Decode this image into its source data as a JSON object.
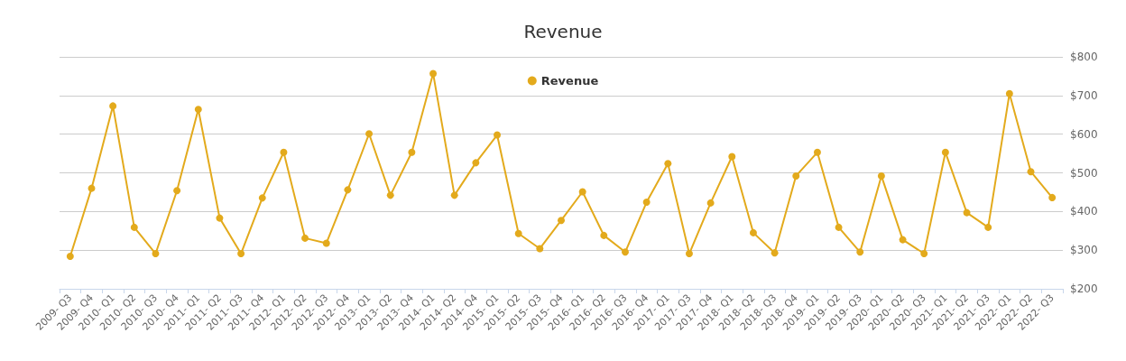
{
  "chart_data": {
    "type": "line",
    "title": "Revenue",
    "categories": [
      "2009- Q3",
      "2009- Q4",
      "2010- Q1",
      "2010- Q2",
      "2010- Q3",
      "2010- Q4",
      "2011- Q1",
      "2011- Q2",
      "2011- Q3",
      "2011- Q4",
      "2012- Q1",
      "2012- Q2",
      "2012- Q3",
      "2012- Q4",
      "2013- Q1",
      "2013- Q2",
      "2013- Q4",
      "2014- Q1",
      "2014- Q2",
      "2014- Q4",
      "2015- Q1",
      "2015- Q2",
      "2015- Q3",
      "2015- Q4",
      "2016- Q1",
      "2016- Q2",
      "2016- Q3",
      "2016- Q4",
      "2017- Q1",
      "2017- Q3",
      "2017- Q4",
      "2018- Q1",
      "2018- Q2",
      "2018- Q3",
      "2018- Q4",
      "2019- Q1",
      "2019- Q2",
      "2019- Q3",
      "2020- Q1",
      "2020- Q2",
      "2020- Q3",
      "2021- Q1",
      "2021- Q2",
      "2021- Q3",
      "2022- Q1",
      "2022- Q2",
      "2022- Q3"
    ],
    "series": [
      {
        "name": "Revenue",
        "color": "#e3aa1c",
        "values": [
          284,
          460,
          673,
          359,
          291,
          454,
          664,
          383,
          291,
          435,
          553,
          331,
          318,
          456,
          601,
          442,
          553,
          757,
          442,
          526,
          598,
          343,
          304,
          377,
          451,
          338,
          295,
          424,
          524,
          291,
          422,
          542,
          345,
          293,
          492,
          553,
          359,
          295,
          492,
          327,
          291,
          553,
          397,
          359,
          705,
          503,
          436
        ]
      }
    ],
    "ylim": [
      200,
      800
    ],
    "yticks": [
      {
        "value": 200,
        "label": "$200"
      },
      {
        "value": 300,
        "label": "$300"
      },
      {
        "value": 400,
        "label": "$400"
      },
      {
        "value": 500,
        "label": "$500"
      },
      {
        "value": 600,
        "label": "$600"
      },
      {
        "value": 700,
        "label": "$700"
      },
      {
        "value": 800,
        "label": "$800"
      }
    ],
    "grid": "y",
    "legend": "top",
    "marker": "circle",
    "line_style": "solid"
  }
}
